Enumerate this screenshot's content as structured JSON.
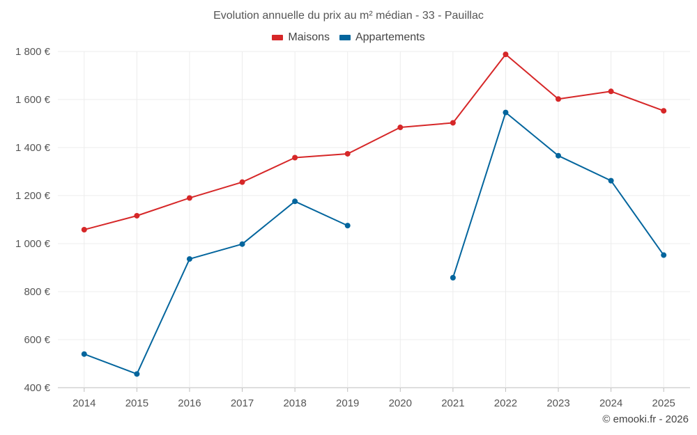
{
  "chart_data": {
    "type": "line",
    "title": "Evolution annuelle du prix au m² médian - 33 - Pauillac",
    "categories": [
      "2014",
      "2015",
      "2016",
      "2017",
      "2018",
      "2019",
      "2020",
      "2021",
      "2022",
      "2023",
      "2024",
      "2025"
    ],
    "series": [
      {
        "name": "Maisons",
        "color": "#d62728",
        "values": [
          1058,
          1116,
          1190,
          1256,
          1358,
          1374,
          1484,
          1503,
          1788,
          1602,
          1634,
          1553
        ]
      },
      {
        "name": "Appartements",
        "color": "#03659d",
        "values": [
          540,
          457,
          936,
          998,
          1176,
          1075,
          null,
          858,
          1546,
          1366,
          1262,
          952
        ]
      }
    ],
    "y_ticks": [
      400,
      600,
      800,
      1000,
      1200,
      1400,
      1600,
      1800
    ],
    "y_tick_labels": [
      "400 €",
      "600 €",
      "800 €",
      "1 000 €",
      "1 200 €",
      "1 400 €",
      "1 600 €",
      "1 800 €"
    ],
    "ylim": [
      400,
      1800
    ],
    "xlabel": "",
    "ylabel": "",
    "grid": true,
    "legend_position": "top-center"
  },
  "credit": "© emooki.fr - 2026"
}
